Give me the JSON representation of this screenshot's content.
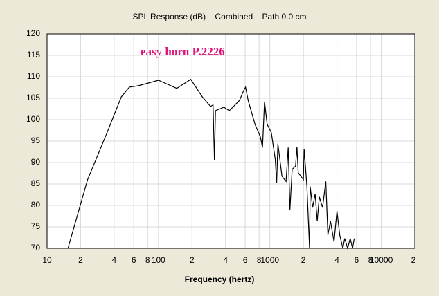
{
  "chart_data": {
    "type": "line",
    "title": "SPL Response (dB)    Combined    Path 0.0 cm",
    "annotation": "easy horn P.2226",
    "x_label": "Frequency (hertz)",
    "log_x": true,
    "grid": true,
    "xlim": [
      10,
      20000
    ],
    "xticks": [
      10,
      {
        "value": 20,
        "label": "2"
      },
      {
        "value": 40,
        "label": "4"
      },
      {
        "value": 60,
        "label": "6"
      },
      {
        "value": 80,
        "label": "8"
      },
      100,
      {
        "value": 200,
        "label": "2"
      },
      {
        "value": 400,
        "label": "4"
      },
      {
        "value": 600,
        "label": "6"
      },
      {
        "value": 800,
        "label": "8"
      },
      1000,
      {
        "value": 2000,
        "label": "2"
      },
      {
        "value": 4000,
        "label": "4"
      },
      {
        "value": 6000,
        "label": "6"
      },
      {
        "value": 8000,
        "label": "8"
      },
      10000,
      {
        "value": 20000,
        "label": "2"
      }
    ],
    "ylim": [
      70,
      120
    ],
    "yticks": [
      70,
      75,
      80,
      85,
      90,
      95,
      100,
      105,
      110,
      115,
      120
    ],
    "color": "#000000",
    "x": [
      15.4,
      23.1,
      35,
      46.4,
      54.8,
      65.8,
      100,
      146,
      195,
      248,
      293,
      309,
      318,
      325,
      387,
      433,
      534,
      575,
      605,
      640,
      736,
      822,
      859,
      895,
      946,
      1030,
      1118,
      1150,
      1180,
      1285,
      1398,
      1460,
      1515,
      1585,
      1700,
      1750,
      1797,
      1900,
      2000,
      2030,
      2150,
      2270,
      2300,
      2420,
      2550,
      2660,
      2780,
      2970,
      3180,
      3320,
      3500,
      3770,
      4000,
      4240,
      4520,
      4700,
      4990,
      5260,
      5520,
      5720
    ],
    "values": [
      70,
      86,
      97.3,
      105.3,
      107.6,
      107.9,
      109.2,
      107.3,
      109.4,
      105.3,
      103.1,
      103.4,
      90.5,
      102.1,
      102.9,
      102.1,
      104.5,
      106.5,
      107.6,
      104.4,
      98.9,
      96,
      93.5,
      104.2,
      98.9,
      97,
      90.8,
      85.2,
      94.4,
      86.8,
      85.6,
      93.5,
      79,
      88.4,
      89.2,
      93.7,
      87.6,
      86.8,
      86,
      93.2,
      84.4,
      70,
      84.4,
      79.5,
      82.7,
      76.3,
      82,
      79.5,
      85.6,
      73.1,
      76.3,
      71.5,
      78.7,
      73.1,
      70,
      72.3,
      70,
      72.3,
      70,
      72.3
    ]
  }
}
